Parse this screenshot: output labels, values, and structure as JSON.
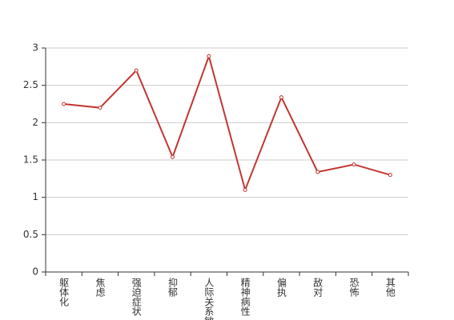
{
  "chart_data": {
    "type": "line",
    "categories": [
      "躯体化",
      "焦虑",
      "强迫症状",
      "抑郁",
      "人际关系敏感",
      "精神病性",
      "偏执",
      "敌对",
      "恐怖",
      "其他"
    ],
    "series": [
      {
        "color": "#c23531",
        "values": [
          2.25,
          2.2,
          2.7,
          1.54,
          2.89,
          1.1,
          2.34,
          1.34,
          1.44,
          1.3
        ]
      }
    ],
    "ylim": [
      0,
      3
    ],
    "yticks": [
      0,
      0.5,
      1,
      1.5,
      2,
      2.5,
      3
    ],
    "grid": true
  }
}
